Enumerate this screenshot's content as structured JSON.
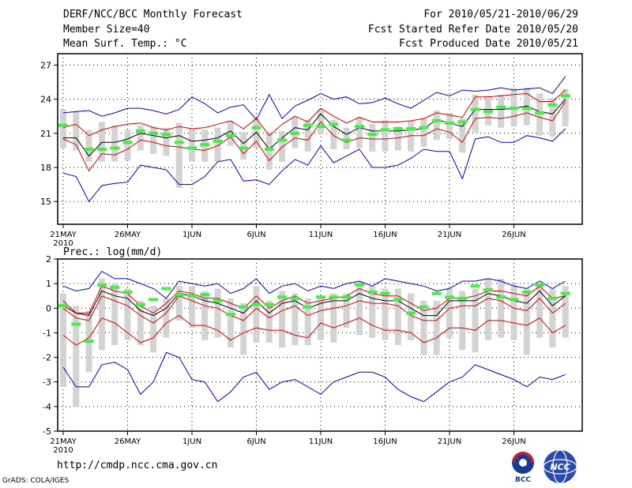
{
  "header": {
    "title": "DERF/NCC/BCC Monthly Forecast",
    "member_size": "Member Size=40",
    "variable": "Mean Surf. Temp.: °C",
    "period": "For 2010/05/21-2010/06/29",
    "started": "Fcst Started Refer Date 2010/05/20",
    "produced": "Fcst Produced Date 2010/05/21"
  },
  "footer": {
    "url": "http://cmdp.ncc.cma.gov.cn",
    "grads": "GrADS: COLA/IGES",
    "logo_bcc": "BCC",
    "logo_ncc": "NCC"
  },
  "colors": {
    "ensemble_bar": "#d3d3d3",
    "envelope": "#0000cc",
    "spread": "#dd0000",
    "mean": "#000000",
    "observed": "#44ee44"
  },
  "chart_data": [
    {
      "type": "line",
      "title": "Mean Surf. Temp.: °C",
      "ylim": [
        13,
        28
      ],
      "yticks": [
        15,
        18,
        21,
        24,
        27
      ],
      "x_ticks": [
        {
          "day": 1,
          "label": "21MAY",
          "sub": "2010"
        },
        {
          "day": 6,
          "label": "26MAY"
        },
        {
          "day": 11,
          "label": "1JUN"
        },
        {
          "day": 16,
          "label": "6JUN"
        },
        {
          "day": 21,
          "label": "11JUN"
        },
        {
          "day": 26,
          "label": "16JUN"
        },
        {
          "day": 31,
          "label": "21JUN"
        },
        {
          "day": 36,
          "label": "26JUN"
        }
      ],
      "days": 40,
      "series": [
        {
          "name": "max",
          "values": [
            22.8,
            22.9,
            23,
            22.5,
            22.8,
            23.2,
            23.2,
            23,
            22.7,
            23.1,
            24.2,
            23.6,
            22.8,
            23.3,
            23.5,
            22.2,
            24.4,
            22.3,
            23.4,
            23.9,
            24.5,
            24,
            24.2,
            23.6,
            23.7,
            24.1,
            23.6,
            23.2,
            23.9,
            24.6,
            24.3,
            24.8,
            24.7,
            24.8,
            25,
            24.8,
            24.9,
            25,
            24.5,
            26
          ]
        },
        {
          "name": "upper",
          "values": [
            21.5,
            21.8,
            20.8,
            21.3,
            21.6,
            21.8,
            21.9,
            21.5,
            21.3,
            21.6,
            21.4,
            21.5,
            21.8,
            22.1,
            21.4,
            22.3,
            20.8,
            21.8,
            22.5,
            22,
            23.2,
            22.5,
            21.9,
            22.4,
            22,
            22,
            22,
            22.1,
            22.3,
            22.8,
            22.6,
            22.4,
            24.2,
            24.2,
            24.3,
            24.4,
            24.5,
            23.8,
            23.8,
            24.8
          ]
        },
        {
          "name": "mean",
          "values": [
            20.6,
            20.6,
            19,
            20.2,
            20.2,
            20.5,
            21,
            20.8,
            20.6,
            20.8,
            20.3,
            20.4,
            20.6,
            21.2,
            20.1,
            21.1,
            19.6,
            20.6,
            21.5,
            21.3,
            22.7,
            21.6,
            20.9,
            21.5,
            21.2,
            21.2,
            21.2,
            21.3,
            21.4,
            22.2,
            21.9,
            21.6,
            23.1,
            23.1,
            23.1,
            23.2,
            23.4,
            22.9,
            22.7,
            24
          ]
        },
        {
          "name": "lower",
          "values": [
            20.5,
            20,
            17.7,
            19.2,
            19.1,
            19.6,
            20.4,
            20.2,
            19.9,
            19.8,
            19.6,
            19.5,
            19.9,
            20.7,
            19.2,
            20.3,
            18.6,
            19.8,
            20.6,
            20.4,
            22,
            20.8,
            20.2,
            20.6,
            20.5,
            20.5,
            20.6,
            20.8,
            20.8,
            21.4,
            21.1,
            20.2,
            22.3,
            22.4,
            22.3,
            22.5,
            22.8,
            22.4,
            22.1,
            23.8
          ]
        },
        {
          "name": "min",
          "values": [
            17.5,
            17.2,
            15,
            16.4,
            16.6,
            16.7,
            18.2,
            18,
            17.8,
            16.5,
            16.5,
            17.2,
            18.5,
            18.7,
            16.8,
            16.9,
            16.5,
            17.7,
            18.7,
            18.2,
            19.9,
            18.4,
            19,
            19.6,
            18,
            18,
            18.2,
            18.8,
            19.6,
            19.4,
            19.4,
            17,
            20.5,
            20.7,
            20.2,
            20.2,
            20.8,
            20.6,
            20.3,
            21.4
          ]
        }
      ],
      "bars": [
        [
          19.7,
          23.1
        ],
        [
          19.5,
          22.9
        ],
        [
          18.5,
          21.3
        ],
        [
          18.5,
          22
        ],
        [
          18.5,
          21.7
        ],
        [
          18.6,
          21.3
        ],
        [
          19.5,
          21.7
        ],
        [
          19.2,
          21.6
        ],
        [
          19,
          21.5
        ],
        [
          16.2,
          21.9
        ],
        [
          18.5,
          21.4
        ],
        [
          18.5,
          21.3
        ],
        [
          18.5,
          21.5
        ],
        [
          19.9,
          22.1
        ],
        [
          18.7,
          21.1
        ],
        [
          19.7,
          22.3
        ],
        [
          17.8,
          21.1
        ],
        [
          18.5,
          21.2
        ],
        [
          19.7,
          22.5
        ],
        [
          19.4,
          22.2
        ],
        [
          20.9,
          23.1
        ],
        [
          19.6,
          22.2
        ],
        [
          19.6,
          21.5
        ],
        [
          19.7,
          22.4
        ],
        [
          19.4,
          21.8
        ],
        [
          19.4,
          22.2
        ],
        [
          19.5,
          21.6
        ],
        [
          19.4,
          22.1
        ],
        [
          19.8,
          22.3
        ],
        [
          20.4,
          23
        ],
        [
          20.5,
          22.8
        ],
        [
          19.3,
          22.3
        ],
        [
          21.1,
          24.4
        ],
        [
          21.7,
          24.3
        ],
        [
          21.5,
          24.4
        ],
        [
          21.6,
          25
        ],
        [
          21.7,
          25
        ],
        [
          20.8,
          24.5
        ],
        [
          20.7,
          24.1
        ],
        [
          21.6,
          24.9
        ]
      ],
      "observed": [
        21.7,
        null,
        19.6,
        19.6,
        19.7,
        20.2,
        21.2,
        21,
        20.9,
        20.2,
        19.7,
        20,
        20.3,
        20.8,
        19.7,
        21.5,
        19.6,
        20.4,
        21,
        21.7,
        21.6,
        21.8,
        20.4,
        21.6,
        20.9,
        21.3,
        21.4,
        21.4,
        21.5,
        22.1,
        21.9,
        22,
        23.1,
        22.9,
        23.3,
        23.2,
        23.2,
        22.8,
        23.5,
        24.3
      ]
    },
    {
      "type": "line",
      "title": "Prec.: log(mm/d)",
      "ylim": [
        -5,
        2
      ],
      "yticks": [
        -5,
        -4,
        -3,
        -2,
        -1,
        0,
        1,
        2
      ],
      "x_ticks": [
        {
          "day": 1,
          "label": "21MAY",
          "sub": "2010"
        },
        {
          "day": 6,
          "label": "26MAY"
        },
        {
          "day": 11,
          "label": "1JUN"
        },
        {
          "day": 16,
          "label": "6JUN"
        },
        {
          "day": 21,
          "label": "11JUN"
        },
        {
          "day": 26,
          "label": "16JUN"
        },
        {
          "day": 31,
          "label": "21JUN"
        },
        {
          "day": 36,
          "label": "26JUN"
        }
      ],
      "days": 40,
      "series": [
        {
          "name": "max",
          "values": [
            0.9,
            0.7,
            0.8,
            1.5,
            1.2,
            1.2,
            1,
            0.8,
            0.4,
            1.1,
            1,
            0.9,
            1,
            0.6,
            0.8,
            1.2,
            0.6,
            0.9,
            1,
            0.7,
            0.9,
            0.8,
            1,
            1.1,
            0.9,
            1.2,
            1.1,
            1,
            0.9,
            0.7,
            0.8,
            1.1,
            1.1,
            1.2,
            1.1,
            0.9,
            0.8,
            1.1,
            0.8,
            1.1
          ]
        },
        {
          "name": "upper",
          "values": [
            0.3,
            -0.2,
            -0.2,
            0.9,
            0.7,
            0.6,
            0.1,
            -0.2,
            0.2,
            0.7,
            0.6,
            0.4,
            0.4,
            0.2,
            0,
            0.5,
            0,
            0.3,
            0.5,
            0.2,
            0.3,
            0.4,
            0.5,
            0.8,
            0.6,
            0.5,
            0.5,
            0.2,
            -0.1,
            0,
            0.4,
            0.4,
            0.5,
            0.7,
            0.7,
            0.6,
            0.5,
            0.9,
            0.4,
            0.5
          ]
        },
        {
          "name": "mean",
          "values": [
            0.1,
            -0.2,
            -0.3,
            0.7,
            0.5,
            0.4,
            -0.1,
            -0.3,
            0,
            0.6,
            0.5,
            0.3,
            0.2,
            0,
            -0.2,
            0.3,
            -0.2,
            0.2,
            0.3,
            0,
            0.2,
            0.3,
            0.3,
            0.6,
            0.4,
            0.3,
            0.3,
            0,
            -0.3,
            -0.3,
            0.3,
            0.3,
            0.3,
            0.6,
            0.5,
            0.3,
            0.2,
            0.7,
            0.1,
            0.5
          ]
        },
        {
          "name": "lower",
          "values": [
            0,
            -0.4,
            -0.5,
            0.5,
            0.3,
            0.1,
            -0.3,
            -0.6,
            -0.2,
            0.5,
            0.3,
            0.1,
            0,
            -0.3,
            -0.5,
            0,
            -0.4,
            -0.1,
            0.1,
            -0.3,
            -0.1,
            0,
            0.1,
            0.3,
            0.2,
            0.2,
            0.1,
            -0.3,
            -0.5,
            -0.5,
            0,
            0.1,
            0.1,
            0.4,
            0.3,
            0,
            -0.1,
            0.4,
            -0.2,
            0.2
          ]
        },
        {
          "name": "low",
          "values": [
            -1.1,
            -1.5,
            -1.2,
            -0.4,
            -0.6,
            -1,
            -1.4,
            -1.2,
            -0.6,
            -0.3,
            -0.7,
            -0.7,
            -0.9,
            -1.3,
            -1,
            -0.8,
            -0.9,
            -0.9,
            -1.1,
            -1.2,
            -0.6,
            -0.8,
            -0.6,
            -0.4,
            -0.7,
            -0.9,
            -0.9,
            -1,
            -1.4,
            -1.2,
            -0.8,
            -0.8,
            -0.9,
            -0.5,
            -0.5,
            -0.6,
            -0.7,
            -0.4,
            -1,
            -0.7
          ]
        },
        {
          "name": "min",
          "values": [
            -2.4,
            -3.2,
            -3.2,
            -2.3,
            -2.2,
            -2.5,
            -3.5,
            -3,
            -1.8,
            -2,
            -2.9,
            -3,
            -3.8,
            -3.4,
            -2.8,
            -2.6,
            -3.3,
            -3,
            -2.9,
            -3.2,
            -3.5,
            -3,
            -2.8,
            -2.6,
            -2.6,
            -2.8,
            -3.3,
            -3.6,
            -3.8,
            -3.4,
            -3,
            -2.8,
            -2.3,
            -2.5,
            -2.7,
            -2.9,
            -3.2,
            -2.8,
            -2.9,
            -2.7
          ]
        }
      ],
      "bars": [
        [
          -3.2,
          0.6
        ],
        [
          -4,
          0.1
        ],
        [
          -2.6,
          -0.1
        ],
        [
          -1.7,
          1.2
        ],
        [
          -1.5,
          1
        ],
        [
          -1.3,
          0.8
        ],
        [
          -1.5,
          0.3
        ],
        [
          -1.8,
          0.1
        ],
        [
          -1.2,
          0.4
        ],
        [
          -0.5,
          0.9
        ],
        [
          -0.8,
          0.9
        ],
        [
          -1.3,
          0.7
        ],
        [
          -1.2,
          0.8
        ],
        [
          -1.6,
          0.4
        ],
        [
          -1.9,
          0.2
        ],
        [
          -1.4,
          0.9
        ],
        [
          -1.4,
          0.3
        ],
        [
          -1.6,
          0.7
        ],
        [
          -1.5,
          0.6
        ],
        [
          -1.5,
          0.4
        ],
        [
          -1.3,
          0.5
        ],
        [
          -1.4,
          0.6
        ],
        [
          -0.8,
          0.6
        ],
        [
          -1.1,
          1.1
        ],
        [
          -1.2,
          0.9
        ],
        [
          -1.3,
          0.8
        ],
        [
          -1.5,
          0.8
        ],
        [
          -1.3,
          0.6
        ],
        [
          -1.9,
          0.3
        ],
        [
          -1.9,
          0.3
        ],
        [
          -1.2,
          0.8
        ],
        [
          -1.7,
          0.7
        ],
        [
          -1.8,
          0.8
        ],
        [
          -1.3,
          1.2
        ],
        [
          -1.2,
          1.2
        ],
        [
          -1.3,
          1
        ],
        [
          -1.9,
          0.8
        ],
        [
          -1.2,
          1
        ],
        [
          -1.6,
          0.8
        ],
        [
          -1.2,
          0.9
        ]
      ],
      "observed": [
        0.1,
        -0.65,
        -1.35,
        0.95,
        0.85,
        0.65,
        0.15,
        0.35,
        0.8,
        0.55,
        0.5,
        0.55,
        0.3,
        -0.25,
        0.05,
        0.15,
        0.15,
        0.45,
        0.4,
        0.05,
        0.45,
        0.45,
        0.45,
        0.95,
        0.65,
        0.6,
        0.35,
        -0.2,
        0.05,
        0.6,
        0.45,
        0.4,
        0.9,
        0.75,
        0.45,
        0.35,
        0.65,
        0.95,
        0.4,
        0.6
      ]
    }
  ]
}
